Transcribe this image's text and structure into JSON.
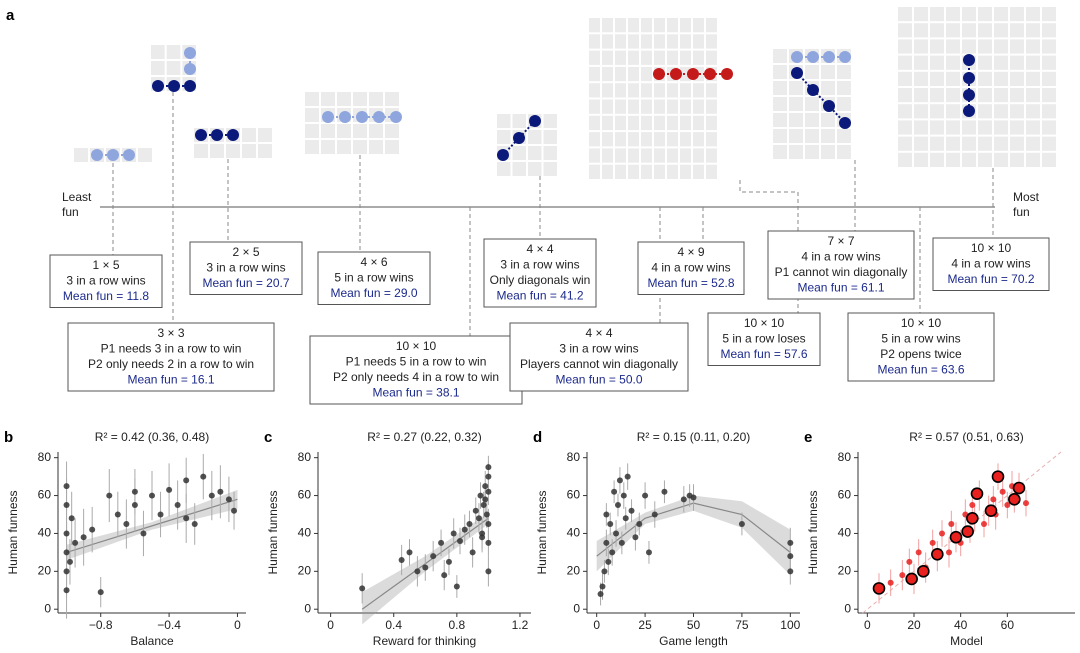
{
  "panel_a": {
    "label": "a",
    "least_fun": [
      "Least",
      "fun"
    ],
    "most_fun": [
      "Most",
      "fun"
    ],
    "games": [
      {
        "lines": [
          "1 × 5",
          "3 in a row wins"
        ],
        "mean_fun": "Mean fun = 11.8"
      },
      {
        "lines": [
          "3 × 3",
          "P1 needs 3 in a row to win",
          "P2 only needs 2 in a row to win"
        ],
        "mean_fun": "Mean fun = 16.1"
      },
      {
        "lines": [
          "2 × 5",
          "3 in a row wins"
        ],
        "mean_fun": "Mean fun = 20.7"
      },
      {
        "lines": [
          "4 × 6",
          "5 in a row wins"
        ],
        "mean_fun": "Mean fun = 29.0"
      },
      {
        "lines": [
          "10 × 10",
          "P1 needs 5 in a row to win",
          "P2 only needs 4 in a row to win"
        ],
        "mean_fun": "Mean fun = 38.1"
      },
      {
        "lines": [
          "4 × 4",
          "3 in a row wins",
          "Only diagonals win"
        ],
        "mean_fun": "Mean fun = 41.2"
      },
      {
        "lines": [
          "4 × 4",
          "3 in a row wins",
          "Players cannot win diagonally"
        ],
        "mean_fun": "Mean fun = 50.0"
      },
      {
        "lines": [
          "4 × 9",
          "4 in a row wins"
        ],
        "mean_fun": "Mean fun = 52.8"
      },
      {
        "lines": [
          "10 × 10",
          "5 in a row loses"
        ],
        "mean_fun": "Mean fun = 57.6"
      },
      {
        "lines": [
          "7 × 7",
          "4 in a row wins",
          "P1 cannot win diagonally"
        ],
        "mean_fun": "Mean fun = 61.1"
      },
      {
        "lines": [
          "10 × 10",
          "5 in a row wins",
          "P2 opens twice"
        ],
        "mean_fun": "Mean fun = 63.6"
      },
      {
        "lines": [
          "10 × 10",
          "4 in a row wins"
        ],
        "mean_fun": "Mean fun = 70.2"
      }
    ]
  },
  "chart_data": [
    {
      "type": "scatter",
      "panel_label": "b",
      "title": "R² = 0.42 (0.36, 0.48)",
      "x_label": "Balance",
      "y_label": "Human funness",
      "xlim": [
        -1.05,
        0.05
      ],
      "ylim": [
        -2,
        83
      ],
      "xticks": [
        {
          "value": -0.8,
          "label": "−0.8"
        },
        {
          "value": -0.4,
          "label": "−0.4"
        },
        0
      ],
      "yticks": [
        0,
        20,
        40,
        60,
        80
      ],
      "color": "#333333",
      "error_color": "#aaaaaa",
      "x": [
        -1,
        -1,
        -1,
        -1,
        -1,
        -1,
        -0.98,
        -0.97,
        -0.95,
        -0.9,
        -0.85,
        -0.8,
        -0.75,
        -0.7,
        -0.65,
        -0.6,
        -0.55,
        -0.5,
        -0.45,
        -0.4,
        -0.35,
        -0.3,
        -0.25,
        -0.2,
        -0.15,
        -0.1,
        -0.05,
        -0.02,
        -0.6,
        -0.3
      ],
      "y": [
        10,
        20,
        30,
        40,
        55,
        65,
        25,
        48,
        35,
        38,
        42,
        9,
        60,
        50,
        45,
        55,
        40,
        60,
        50,
        63,
        55,
        68,
        45,
        70,
        60,
        62,
        58,
        52,
        62,
        48
      ],
      "yerr": [
        15,
        14,
        16,
        15,
        14,
        13,
        12,
        14,
        13,
        15,
        12,
        8,
        14,
        12,
        13,
        14,
        12,
        13,
        12,
        14,
        13,
        12,
        11,
        12,
        13,
        14,
        12,
        10,
        12,
        13
      ],
      "fit": {
        "x": [
          -1,
          -0.5,
          0
        ],
        "y": [
          30,
          44,
          58
        ],
        "lower": [
          26,
          42,
          53
        ],
        "upper": [
          34,
          46,
          63
        ]
      }
    },
    {
      "type": "scatter",
      "panel_label": "c",
      "title": "R² = 0.27 (0.22, 0.32)",
      "x_label": "Reward for thinking",
      "y_label": "Human funness",
      "xlim": [
        -0.08,
        1.27
      ],
      "ylim": [
        -2,
        83
      ],
      "xticks": [
        0,
        0.4,
        0.8,
        1.2
      ],
      "yticks": [
        0,
        20,
        40,
        60,
        80
      ],
      "color": "#333333",
      "error_color": "#aaaaaa",
      "x": [
        0.2,
        0.45,
        0.5,
        0.55,
        0.6,
        0.65,
        0.7,
        0.72,
        0.75,
        0.78,
        0.8,
        0.82,
        0.85,
        0.88,
        0.9,
        0.92,
        0.94,
        0.95,
        0.96,
        0.97,
        0.98,
        0.99,
        1,
        1,
        1,
        1,
        1,
        1,
        0.98,
        0.96
      ],
      "y": [
        11,
        26,
        30,
        20,
        22,
        28,
        35,
        18,
        25,
        40,
        12,
        36,
        42,
        45,
        30,
        52,
        48,
        60,
        40,
        55,
        65,
        50,
        70,
        62,
        45,
        35,
        20,
        75,
        58,
        38
      ],
      "yerr": [
        8,
        8,
        7,
        8,
        7,
        8,
        7,
        8,
        7,
        8,
        6,
        7,
        8,
        7,
        8,
        7,
        8,
        7,
        8,
        7,
        8,
        7,
        8,
        7,
        8,
        7,
        8,
        6,
        7,
        8
      ],
      "fit": {
        "x": [
          0.2,
          0.6,
          1
        ],
        "y": [
          0,
          24,
          48
        ],
        "lower": [
          -8,
          20,
          45
        ],
        "upper": [
          9,
          28,
          51
        ]
      }
    },
    {
      "type": "scatter",
      "panel_label": "d",
      "title": "R² = 0.15 (0.11, 0.20)",
      "x_label": "Game length",
      "y_label": "Human funness",
      "xlim": [
        -5,
        105
      ],
      "ylim": [
        -2,
        83
      ],
      "xticks": [
        0,
        25,
        50,
        75,
        100
      ],
      "yticks": [
        0,
        20,
        40,
        60,
        80
      ],
      "color": "#333333",
      "error_color": "#aaaaaa",
      "x": [
        2,
        3,
        4,
        5,
        5,
        6,
        7,
        8,
        9,
        10,
        11,
        12,
        13,
        14,
        15,
        16,
        18,
        20,
        22,
        25,
        27,
        30,
        35,
        45,
        48,
        50,
        75,
        100,
        100,
        100
      ],
      "y": [
        8,
        12,
        20,
        35,
        50,
        25,
        45,
        30,
        62,
        40,
        55,
        68,
        35,
        60,
        48,
        70,
        52,
        38,
        45,
        60,
        30,
        50,
        62,
        58,
        60,
        59,
        45,
        35,
        20,
        28
      ],
      "yerr": [
        6,
        7,
        6,
        7,
        6,
        7,
        6,
        7,
        6,
        7,
        6,
        7,
        6,
        7,
        6,
        7,
        6,
        7,
        6,
        7,
        6,
        7,
        6,
        7,
        6,
        7,
        6,
        8,
        7,
        8
      ],
      "fit": {
        "x": [
          0,
          25,
          50,
          75,
          100
        ],
        "y": [
          28,
          48,
          56,
          50,
          30
        ],
        "lower": [
          20,
          45,
          52,
          43,
          18
        ],
        "upper": [
          36,
          51,
          60,
          57,
          42
        ]
      }
    },
    {
      "type": "scatter",
      "panel_label": "e",
      "title": "R² = 0.57 (0.51, 0.63)",
      "x_label": "Model",
      "y_label": "Human funness",
      "xlim": [
        -4,
        89
      ],
      "ylim": [
        -2,
        83
      ],
      "xticks": [
        0,
        20,
        40,
        60
      ],
      "yticks": [
        0,
        20,
        40,
        60,
        80
      ],
      "color": "#e8201e",
      "error_color": "#f2a0a0",
      "x": [
        5,
        10,
        15,
        18,
        20,
        22,
        25,
        28,
        30,
        32,
        35,
        36,
        38,
        40,
        42,
        44,
        45,
        46,
        48,
        50,
        52,
        54,
        55,
        56,
        58,
        60,
        62,
        63,
        65,
        68
      ],
      "y": [
        11,
        14,
        18,
        25,
        16,
        30,
        22,
        35,
        28,
        40,
        30,
        45,
        38,
        35,
        50,
        42,
        55,
        48,
        60,
        45,
        52,
        58,
        50,
        70,
        62,
        55,
        65,
        58,
        64,
        56
      ],
      "yerr": [
        8,
        7,
        8,
        7,
        8,
        7,
        8,
        7,
        8,
        7,
        8,
        7,
        8,
        7,
        8,
        7,
        8,
        7,
        8,
        7,
        8,
        7,
        8,
        7,
        8,
        7,
        8,
        7,
        8,
        7
      ],
      "highlight_x": [
        5,
        19,
        24,
        30,
        38,
        43,
        45,
        47,
        53,
        56,
        63,
        65
      ],
      "highlight_y": [
        11,
        16,
        20,
        29,
        38,
        41,
        48,
        61,
        52,
        70,
        58,
        64
      ]
    }
  ]
}
